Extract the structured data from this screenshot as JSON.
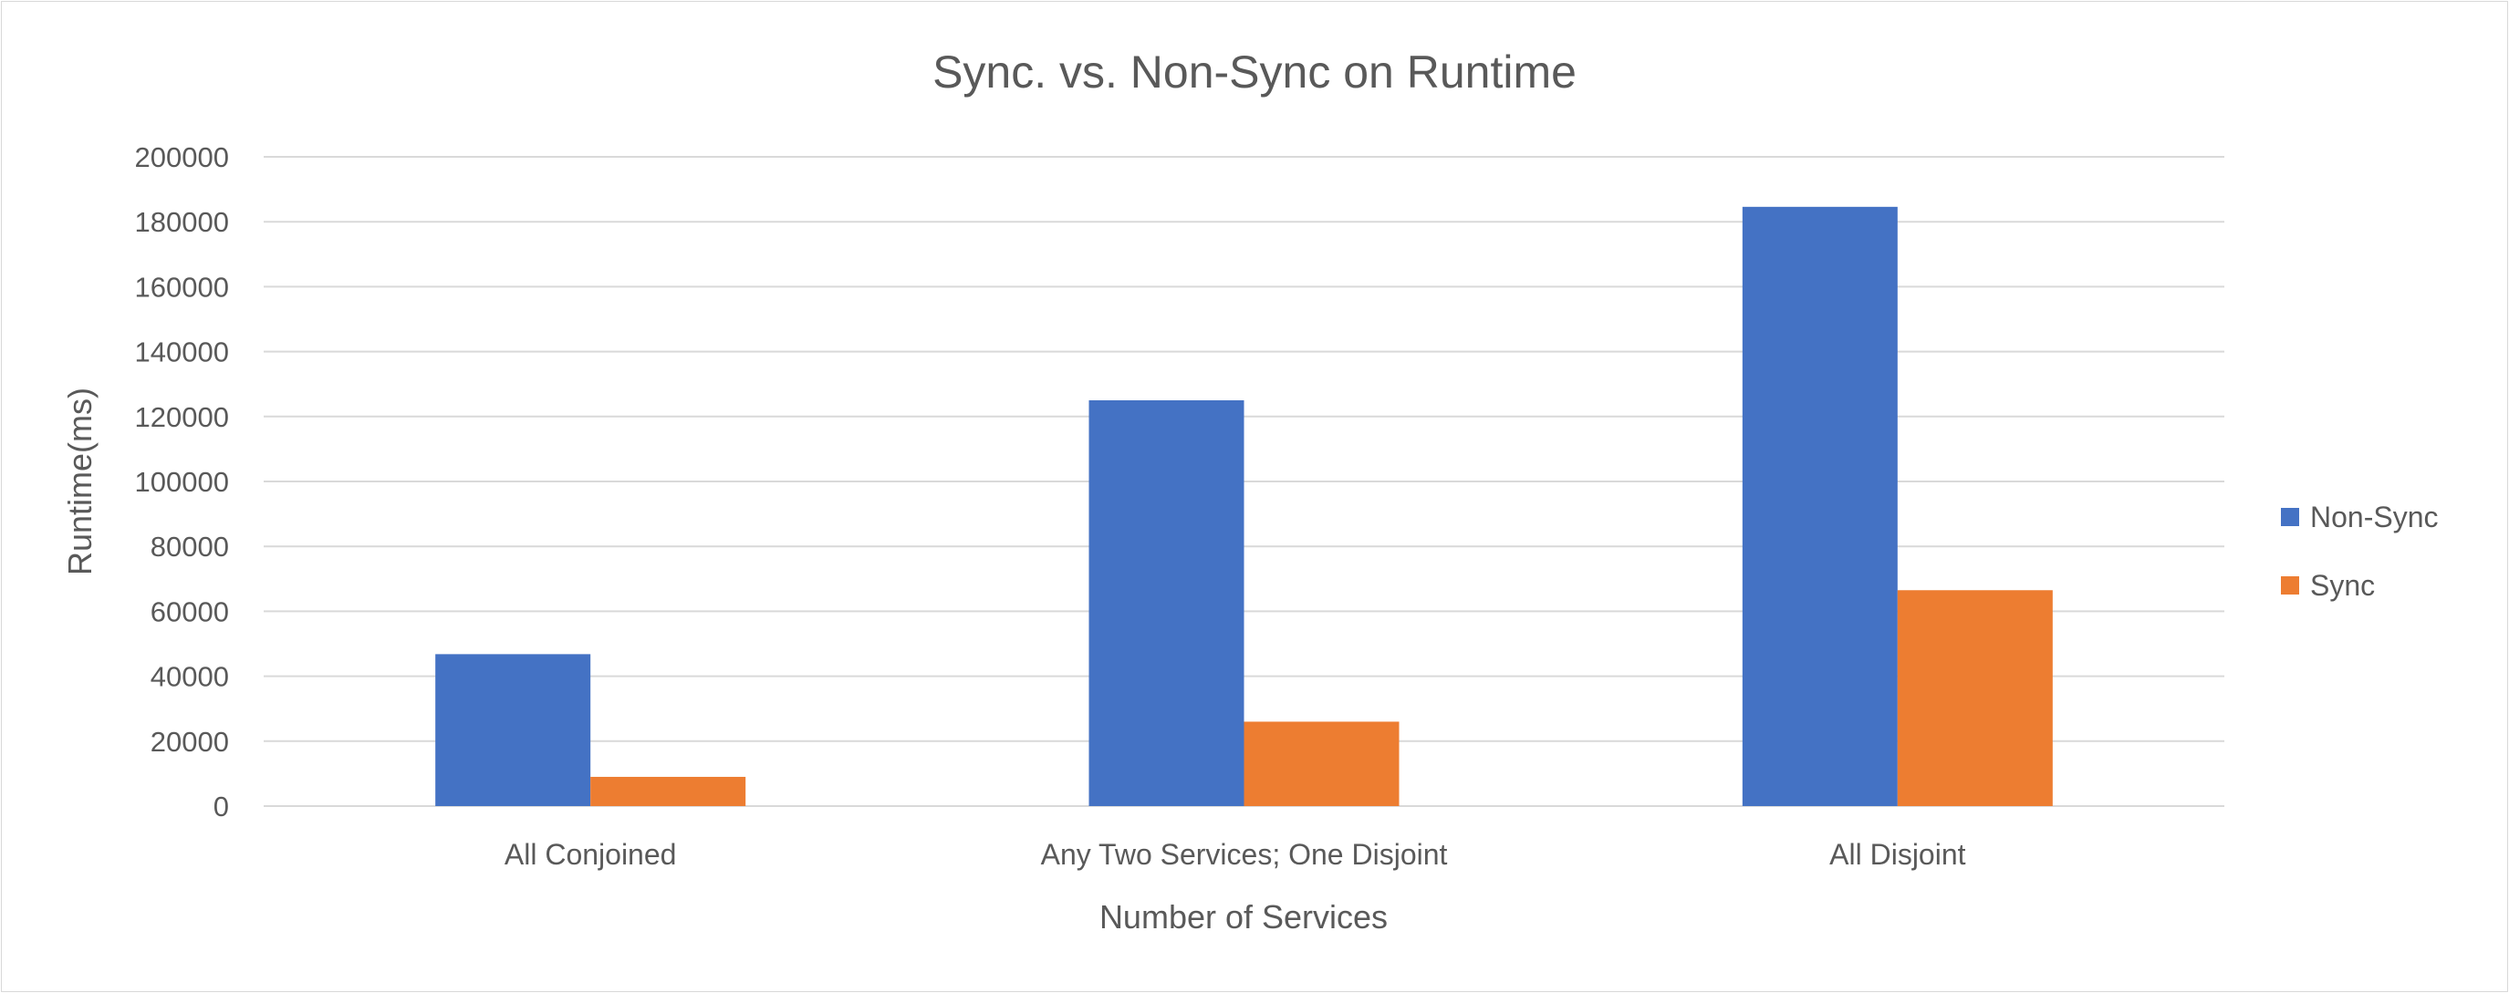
{
  "chart_data": {
    "type": "bar",
    "title": "Sync. vs. Non-Sync on Runtime",
    "xlabel": "Number of Services",
    "ylabel": "Runtime(ms)",
    "categories": [
      "All Conjoined",
      "Any Two Services; One Disjoint",
      "All Disjoint"
    ],
    "series": [
      {
        "name": "Non-Sync",
        "color": "#4472C4",
        "values": [
          46800,
          125000,
          184600
        ]
      },
      {
        "name": "Sync",
        "color": "#ED7D31",
        "values": [
          9000,
          26000,
          66500
        ]
      }
    ],
    "ylim": [
      0,
      200000
    ],
    "yticks": [
      "0",
      "20000",
      "40000",
      "60000",
      "80000",
      "100000",
      "120000",
      "140000",
      "160000",
      "180000",
      "200000"
    ],
    "grid": true,
    "legend": "right"
  }
}
